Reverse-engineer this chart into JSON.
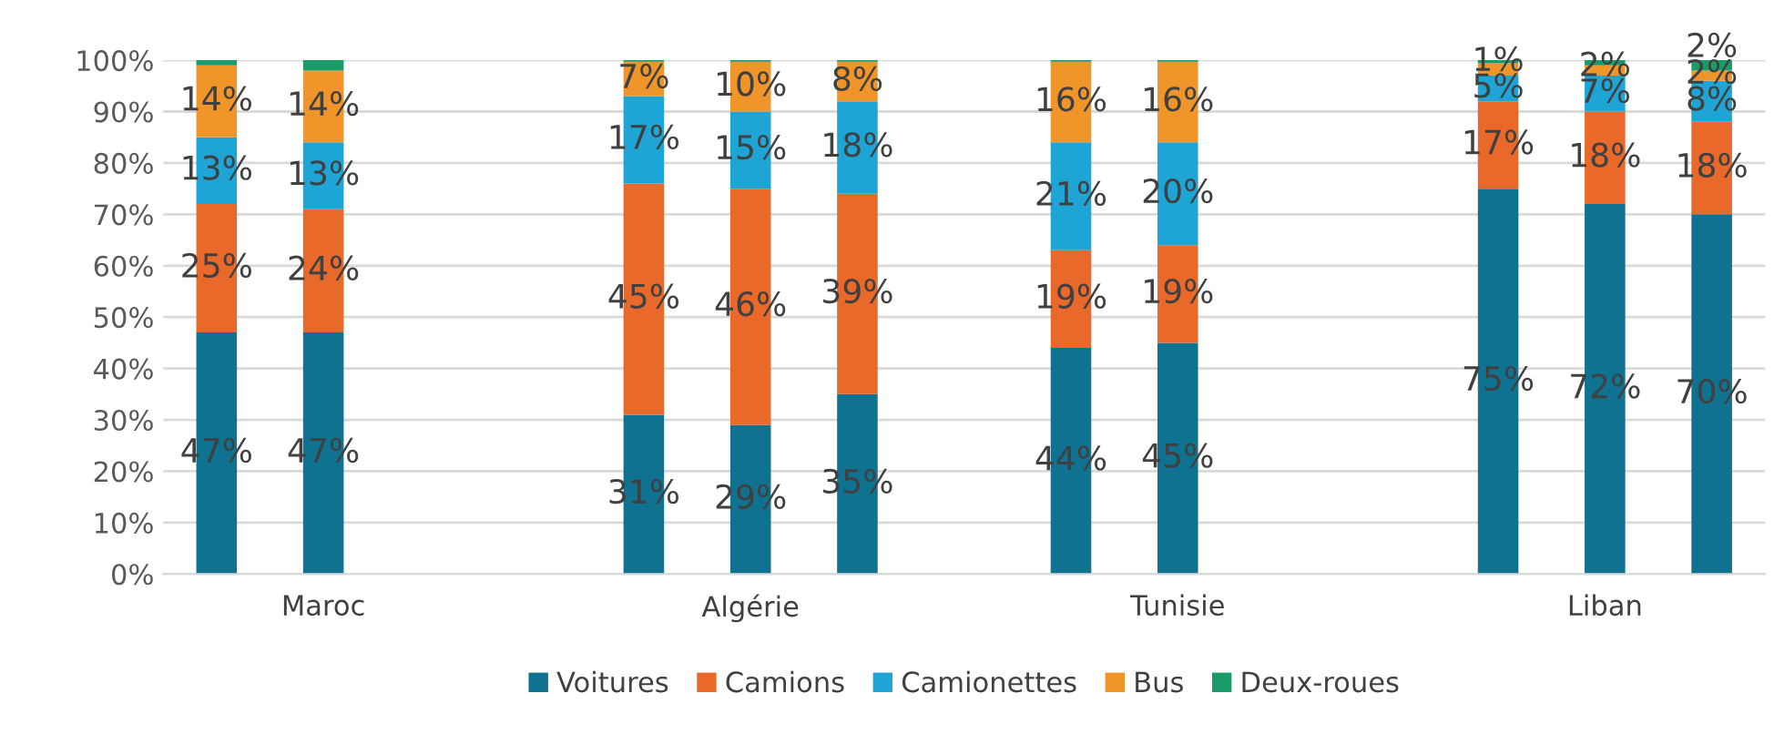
{
  "chart_data": {
    "type": "bar",
    "stacked": true,
    "categories": [
      null,
      "Maroc",
      null,
      null,
      null,
      "Algérie",
      null,
      null,
      null,
      "Tunisie",
      null,
      null,
      null,
      "Liban",
      null
    ],
    "series": [
      {
        "name": "Voitures",
        "color": "#0e7290",
        "values": [
          47,
          47,
          null,
          null,
          31,
          29,
          35,
          null,
          44,
          45,
          null,
          null,
          75,
          72,
          70
        ],
        "value_labels": [
          "47%",
          "47%",
          null,
          null,
          "31%",
          "29%",
          "35%",
          null,
          "44%",
          "45%",
          null,
          null,
          "75%",
          "72%",
          "70%"
        ]
      },
      {
        "name": "Camions",
        "color": "#e8692a",
        "values": [
          25,
          24,
          null,
          null,
          45,
          46,
          39,
          null,
          19,
          19,
          null,
          null,
          17,
          18,
          18
        ],
        "value_labels": [
          "25%",
          "24%",
          null,
          null,
          "45%",
          "46%",
          "39%",
          null,
          "19%",
          "19%",
          null,
          null,
          "17%",
          "18%",
          "18%"
        ]
      },
      {
        "name": "Camionettes",
        "color": "#1ea5d6",
        "values": [
          13,
          13,
          null,
          null,
          17,
          15,
          18,
          null,
          21,
          20,
          null,
          null,
          5,
          7,
          8
        ],
        "value_labels": [
          "13%",
          "13%",
          null,
          null,
          "17%",
          "15%",
          "18%",
          null,
          "21%",
          "20%",
          null,
          null,
          "5%",
          "7%",
          "8%"
        ]
      },
      {
        "name": "Bus",
        "color": "#f0952a",
        "values": [
          14,
          14,
          null,
          null,
          6.7,
          9.7,
          7.7,
          null,
          15.7,
          15.7,
          null,
          null,
          2.4,
          2,
          2
        ],
        "value_labels": [
          "14%",
          "14%",
          null,
          null,
          "7%",
          "10%",
          "8%",
          null,
          "16%",
          "16%",
          null,
          null,
          null,
          "2%",
          "2%"
        ]
      },
      {
        "name": "Deux-roues",
        "color": "#1a9b6a",
        "values": [
          1,
          2,
          null,
          null,
          0.3,
          0.3,
          0.3,
          null,
          0.3,
          0.3,
          null,
          null,
          0.6,
          1,
          2
        ],
        "value_labels": [
          null,
          null,
          null,
          null,
          null,
          null,
          null,
          null,
          null,
          null,
          null,
          null,
          "1%",
          null,
          "2%"
        ]
      }
    ],
    "ylim": [
      0,
      100
    ],
    "yticks": [
      {
        "value": 0,
        "label": "0%"
      },
      {
        "value": 10,
        "label": "10%"
      },
      {
        "value": 20,
        "label": "20%"
      },
      {
        "value": 30,
        "label": "30%"
      },
      {
        "value": 40,
        "label": "40%"
      },
      {
        "value": 50,
        "label": "50%"
      },
      {
        "value": 60,
        "label": "60%"
      },
      {
        "value": 70,
        "label": "70%"
      },
      {
        "value": 80,
        "label": "80%"
      },
      {
        "value": 90,
        "label": "90%"
      },
      {
        "value": 100,
        "label": "100%"
      }
    ],
    "grid": "y",
    "legend": "bottom"
  }
}
